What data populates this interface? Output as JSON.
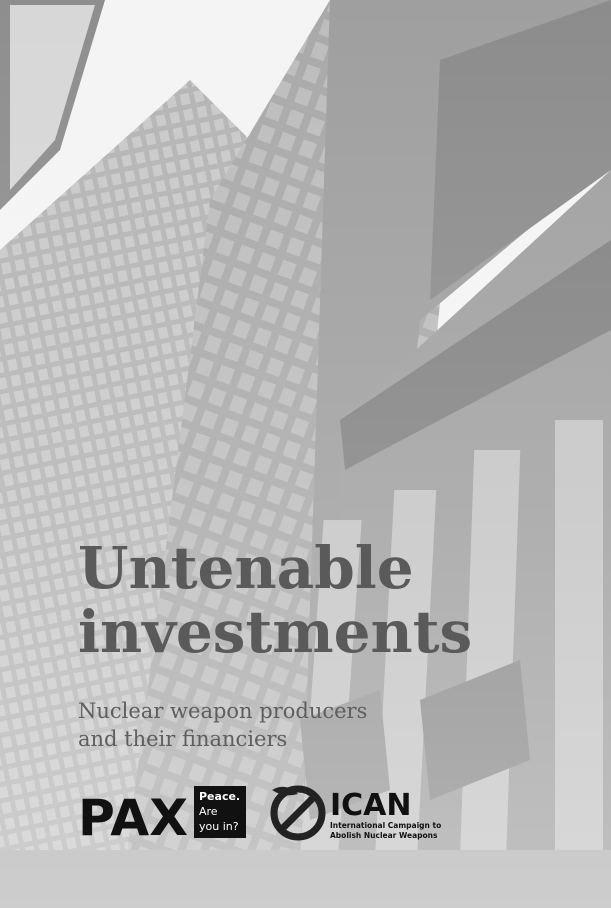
{
  "title": {
    "lines": [
      "Untenable",
      "investments"
    ]
  },
  "subtitle": {
    "lines": [
      "Nuclear weapon producers",
      "and their financiers"
    ]
  },
  "logos": {
    "pax": {
      "name": "PAX",
      "tagline": [
        "Peace.",
        "Are",
        "you in?"
      ]
    },
    "ican": {
      "name": "ICAN",
      "tagline": [
        "International Campaign to",
        "Abolish Nuclear Weapons"
      ]
    }
  }
}
